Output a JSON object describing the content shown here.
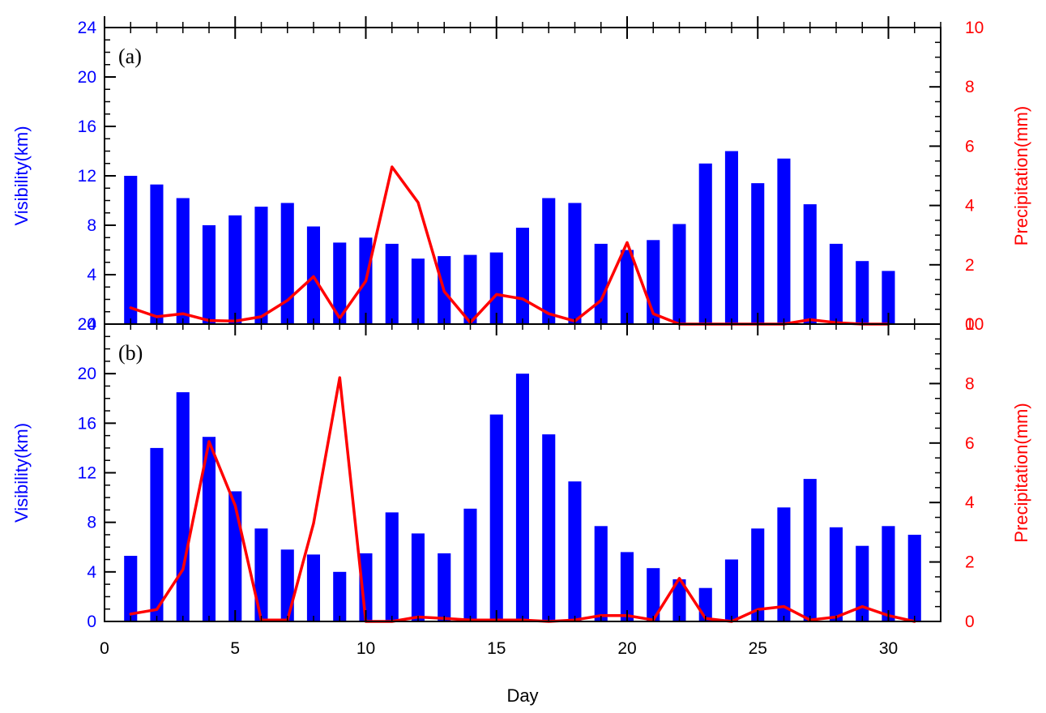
{
  "colors": {
    "visibility": "#0000ff",
    "precipitation": "#ff0000",
    "axis": "#000000"
  },
  "chart_data": [
    {
      "type": "bar",
      "panel_label": "(a)",
      "xlabel": "",
      "ylabel": "Visibility(km)",
      "y2label": "Precipitation(mm)",
      "xlim": [
        0,
        32
      ],
      "ylim": [
        0,
        24
      ],
      "y2lim": [
        0,
        10
      ],
      "yticks": [
        "0",
        "4",
        "8",
        "12",
        "16",
        "20",
        "24"
      ],
      "y2ticks": [
        "0",
        "2",
        "4",
        "6",
        "8",
        "10"
      ],
      "x": [
        1,
        2,
        3,
        4,
        5,
        6,
        7,
        8,
        9,
        10,
        11,
        12,
        13,
        14,
        15,
        16,
        17,
        18,
        19,
        20,
        21,
        22,
        23,
        24,
        25,
        26,
        27,
        28,
        29,
        30
      ],
      "series": [
        {
          "kind": "bar",
          "axis": "left",
          "values": [
            12.0,
            11.3,
            10.2,
            8.0,
            8.8,
            9.5,
            9.8,
            7.9,
            6.6,
            7.0,
            6.5,
            5.3,
            5.5,
            5.6,
            5.8,
            7.8,
            10.2,
            9.8,
            6.5,
            6.0,
            6.8,
            8.1,
            13.0,
            14.0,
            11.4,
            13.4,
            9.7,
            6.5,
            5.1,
            4.3
          ]
        },
        {
          "kind": "line",
          "axis": "right",
          "values": [
            0.55,
            0.25,
            0.35,
            0.12,
            0.1,
            0.25,
            0.8,
            1.6,
            0.2,
            1.45,
            5.3,
            4.1,
            1.1,
            0.05,
            1.0,
            0.85,
            0.35,
            0.1,
            0.8,
            2.75,
            0.35,
            0.0,
            0.0,
            0.0,
            0.0,
            0.0,
            0.15,
            0.05,
            0.0,
            0.0
          ]
        }
      ]
    },
    {
      "type": "bar",
      "panel_label": "(b)",
      "xlabel": "Day",
      "ylabel": "Visibility(km)",
      "y2label": "Precipitation(mm)",
      "xlim": [
        0,
        32
      ],
      "ylim": [
        0,
        24
      ],
      "y2lim": [
        0,
        10
      ],
      "xticks": [
        "0",
        "5",
        "10",
        "15",
        "20",
        "25",
        "30"
      ],
      "yticks": [
        "0",
        "4",
        "8",
        "12",
        "16",
        "20",
        "24"
      ],
      "y2ticks": [
        "0",
        "2",
        "4",
        "6",
        "8",
        "10"
      ],
      "x": [
        1,
        2,
        3,
        4,
        5,
        6,
        7,
        8,
        9,
        10,
        11,
        12,
        13,
        14,
        15,
        16,
        17,
        18,
        19,
        20,
        21,
        22,
        23,
        24,
        25,
        26,
        27,
        28,
        29,
        30,
        31
      ],
      "series": [
        {
          "kind": "bar",
          "axis": "left",
          "values": [
            5.3,
            14.0,
            18.5,
            14.9,
            10.5,
            7.5,
            5.8,
            5.4,
            4.0,
            5.5,
            8.8,
            7.1,
            5.5,
            9.1,
            16.7,
            20.0,
            15.1,
            11.3,
            7.7,
            5.6,
            4.3,
            3.4,
            2.7,
            5.0,
            7.5,
            9.2,
            11.5,
            7.6,
            6.1,
            7.7,
            7.0
          ]
        },
        {
          "kind": "line",
          "axis": "right",
          "values": [
            0.25,
            0.4,
            1.75,
            6.05,
            3.9,
            0.05,
            0.05,
            3.3,
            8.2,
            0.0,
            0.0,
            0.15,
            0.1,
            0.05,
            0.05,
            0.05,
            0.0,
            0.05,
            0.2,
            0.2,
            0.05,
            1.45,
            0.1,
            0.0,
            0.4,
            0.5,
            0.05,
            0.15,
            0.5,
            0.2,
            0.0
          ]
        }
      ]
    }
  ]
}
